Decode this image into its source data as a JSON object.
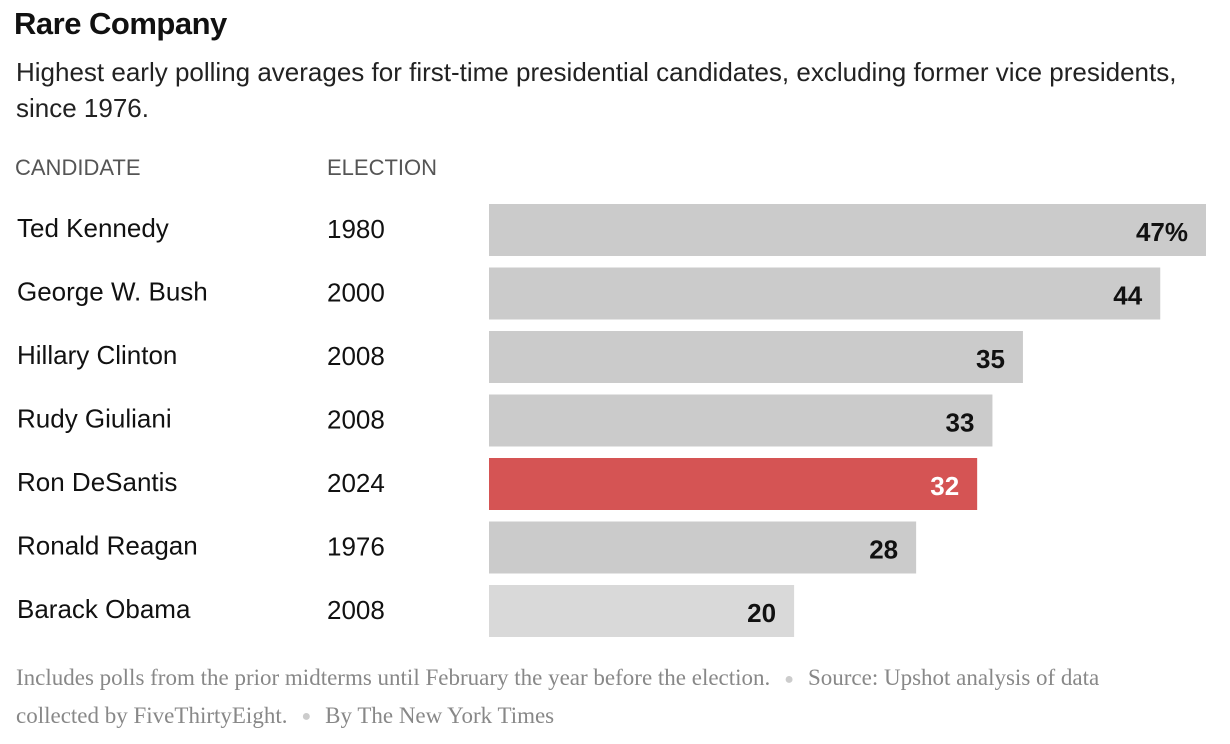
{
  "chart_data": {
    "type": "bar",
    "title": "Rare Company",
    "subtitle": "Highest early polling averages for first-time presidential candidates, excluding former vice presidents, since 1976.",
    "column_headers": [
      "CANDIDATE",
      "ELECTION"
    ],
    "categories": [
      "Ted Kennedy",
      "George W. Bush",
      "Hillary Clinton",
      "Rudy Giuliani",
      "Ron DeSantis",
      "Ronald Reagan",
      "Barack Obama"
    ],
    "elections": [
      "1980",
      "2000",
      "2008",
      "2008",
      "2024",
      "1976",
      "2008"
    ],
    "values": [
      47,
      44,
      35,
      33,
      32,
      28,
      20
    ],
    "value_labels": [
      "47%",
      "44",
      "35",
      "33",
      "32",
      "28",
      "20"
    ],
    "colors": [
      "#cbcbcb",
      "#cbcbcb",
      "#cbcbcb",
      "#cbcbcb",
      "#d55454",
      "#cbcbcb",
      "#d9d9d9"
    ],
    "label_colors": [
      "#111111",
      "#111111",
      "#111111",
      "#111111",
      "#ffffff",
      "#111111",
      "#111111"
    ],
    "note": "Includes polls from the prior midterms until February the year before the election.",
    "source": "Source: Upshot analysis of data collected by FiveThirtyEight.",
    "credit": "By The New York Times"
  }
}
